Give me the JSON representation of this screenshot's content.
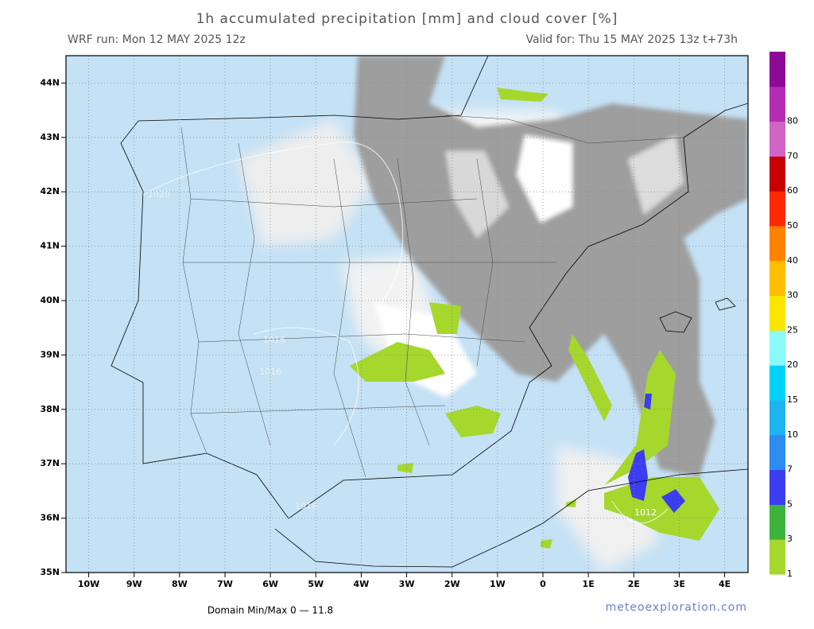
{
  "header": {
    "title": "1h accumulated precipitation [mm] and cloud cover [%]",
    "run": "WRF run: Mon 12 MAY 2025 12z",
    "valid": "Valid for: Thu 15 MAY 2025 13z  t+73h"
  },
  "map": {
    "lon_ticks": [
      {
        "value": -10,
        "label": "10W"
      },
      {
        "value": -9,
        "label": "9W"
      },
      {
        "value": -8,
        "label": "8W"
      },
      {
        "value": -7,
        "label": "7W"
      },
      {
        "value": -6,
        "label": "6W"
      },
      {
        "value": -5,
        "label": "5W"
      },
      {
        "value": -4,
        "label": "4W"
      },
      {
        "value": -3,
        "label": "3W"
      },
      {
        "value": -2,
        "label": "2W"
      },
      {
        "value": -1,
        "label": "1W"
      },
      0,
      {
        "value": 1,
        "label": "1E"
      },
      {
        "value": 2,
        "label": "2E"
      },
      {
        "value": 3,
        "label": "3E"
      },
      {
        "value": 4,
        "label": "4E"
      }
    ],
    "lat_ticks": [
      {
        "value": 35,
        "label": "35N"
      },
      {
        "value": 36,
        "label": "36N"
      },
      {
        "value": 37,
        "label": "37N"
      },
      {
        "value": 38,
        "label": "38N"
      },
      {
        "value": 39,
        "label": "39N"
      },
      {
        "value": 40,
        "label": "40N"
      },
      {
        "value": 41,
        "label": "41N"
      },
      {
        "value": 42,
        "label": "42N"
      },
      {
        "value": 43,
        "label": "43N"
      },
      {
        "value": 44,
        "label": "44N"
      }
    ],
    "isobar_labels": [
      "1020",
      "1016",
      "1016",
      "1016",
      "1012",
      "1016"
    ]
  },
  "colorbar": {
    "levels": [
      1,
      3,
      5,
      7,
      10,
      15,
      20,
      25,
      30,
      40,
      50,
      60,
      70,
      80
    ],
    "colors": [
      "#a5d72d",
      "#3cb43c",
      "#3c3cf0",
      "#2d8cf0",
      "#1eb4f0",
      "#00d2f5",
      "#8cfafa",
      "#fae600",
      "#ffbe00",
      "#ff8200",
      "#ff2800",
      "#c80000",
      "#d264c8",
      "#b42db4",
      "#8c0a96"
    ]
  },
  "footer": {
    "minmax": "Domain Min/Max 0 — 11.8",
    "site": "meteoexploration.com"
  }
}
